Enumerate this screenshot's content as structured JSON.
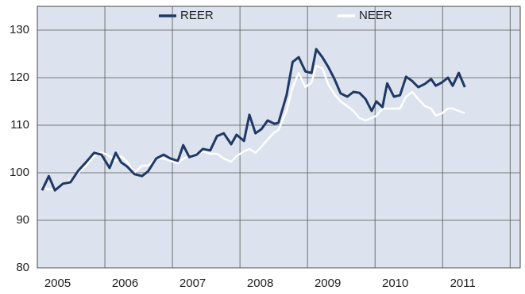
{
  "chart_data": {
    "type": "line",
    "x": [
      2005.07,
      2005.17,
      2005.26,
      2005.38,
      2005.49,
      2005.61,
      2005.72,
      2005.84,
      2005.95,
      2006.07,
      2006.16,
      2006.24,
      2006.33,
      2006.44,
      2006.55,
      2006.64,
      2006.76,
      2006.87,
      2006.97,
      2007.08,
      2007.16,
      2007.25,
      2007.36,
      2007.45,
      2007.56,
      2007.66,
      2007.76,
      2007.87,
      2007.95,
      2008.06,
      2008.14,
      2008.23,
      2008.32,
      2008.41,
      2008.51,
      2008.57,
      2008.69,
      2008.78,
      2008.87,
      2008.97,
      2009.06,
      2009.13,
      2009.22,
      2009.31,
      2009.4,
      2009.49,
      2009.59,
      2009.68,
      2009.77,
      2009.86,
      2009.95,
      2010.02,
      2010.11,
      2010.18,
      2010.28,
      2010.37,
      2010.46,
      2010.55,
      2010.64,
      2010.74,
      2010.83,
      2010.9,
      2010.99,
      2011.08,
      2011.15,
      2011.24,
      2011.33
    ],
    "series": [
      {
        "name": "REER",
        "color": "#1f3864",
        "values": [
          96.3,
          99.3,
          96.3,
          97.7,
          98,
          100.5,
          102.2,
          104.2,
          103.8,
          101,
          104.2,
          102.2,
          101.3,
          99.7,
          99.3,
          100.3,
          103,
          103.8,
          103,
          102.5,
          105.8,
          103.3,
          103.8,
          105,
          104.7,
          107.7,
          108.3,
          106,
          108,
          106.7,
          112.2,
          108.3,
          109.2,
          111,
          110.3,
          110.5,
          116.3,
          123.3,
          124.3,
          121.3,
          121,
          126,
          124.3,
          122.2,
          119.7,
          116.7,
          116,
          117,
          116.8,
          115.5,
          113,
          115,
          113.8,
          118.8,
          116,
          116.3,
          120.2,
          119.3,
          118,
          118.7,
          119.7,
          118.3,
          119,
          120,
          118.3,
          121,
          118
        ]
      },
      {
        "name": "NEER",
        "color": "#ffffff",
        "values": [
          97,
          96.5,
          96.5,
          97.5,
          98.5,
          100,
          101.5,
          103.5,
          104.3,
          103.5,
          102.5,
          103.5,
          102.3,
          100,
          101.5,
          101.5,
          103,
          103,
          102.5,
          102,
          103,
          103.5,
          104,
          104.5,
          104,
          104,
          103,
          102.3,
          103.5,
          104.5,
          105,
          104.2,
          105.5,
          107,
          108.5,
          109,
          113,
          118,
          121,
          118,
          119,
          122.5,
          122,
          118.5,
          116.5,
          115,
          114,
          113,
          111.5,
          111,
          111.5,
          112,
          113.5,
          113.5,
          113.5,
          113.5,
          116,
          117,
          115.5,
          114,
          113.5,
          112,
          112.5,
          113.5,
          113.5,
          113,
          112.5
        ]
      }
    ],
    "xlim": [
      2005,
      2012.15
    ],
    "xticks": [
      {
        "value": 2005.3,
        "label": "2005"
      },
      {
        "value": 2006.3,
        "label": "2006"
      },
      {
        "value": 2007.3,
        "label": "2007"
      },
      {
        "value": 2008.3,
        "label": "2008"
      },
      {
        "value": 2009.3,
        "label": "2009"
      },
      {
        "value": 2010.3,
        "label": "2010"
      },
      {
        "value": 2011.3,
        "label": "2011"
      }
    ],
    "xgrid": [
      2006,
      2007,
      2008,
      2009,
      2010,
      2011,
      2012
    ],
    "ylim": [
      80,
      135
    ],
    "yticks": [
      80,
      90,
      100,
      110,
      120,
      130
    ],
    "grid": true,
    "legend": "top"
  }
}
